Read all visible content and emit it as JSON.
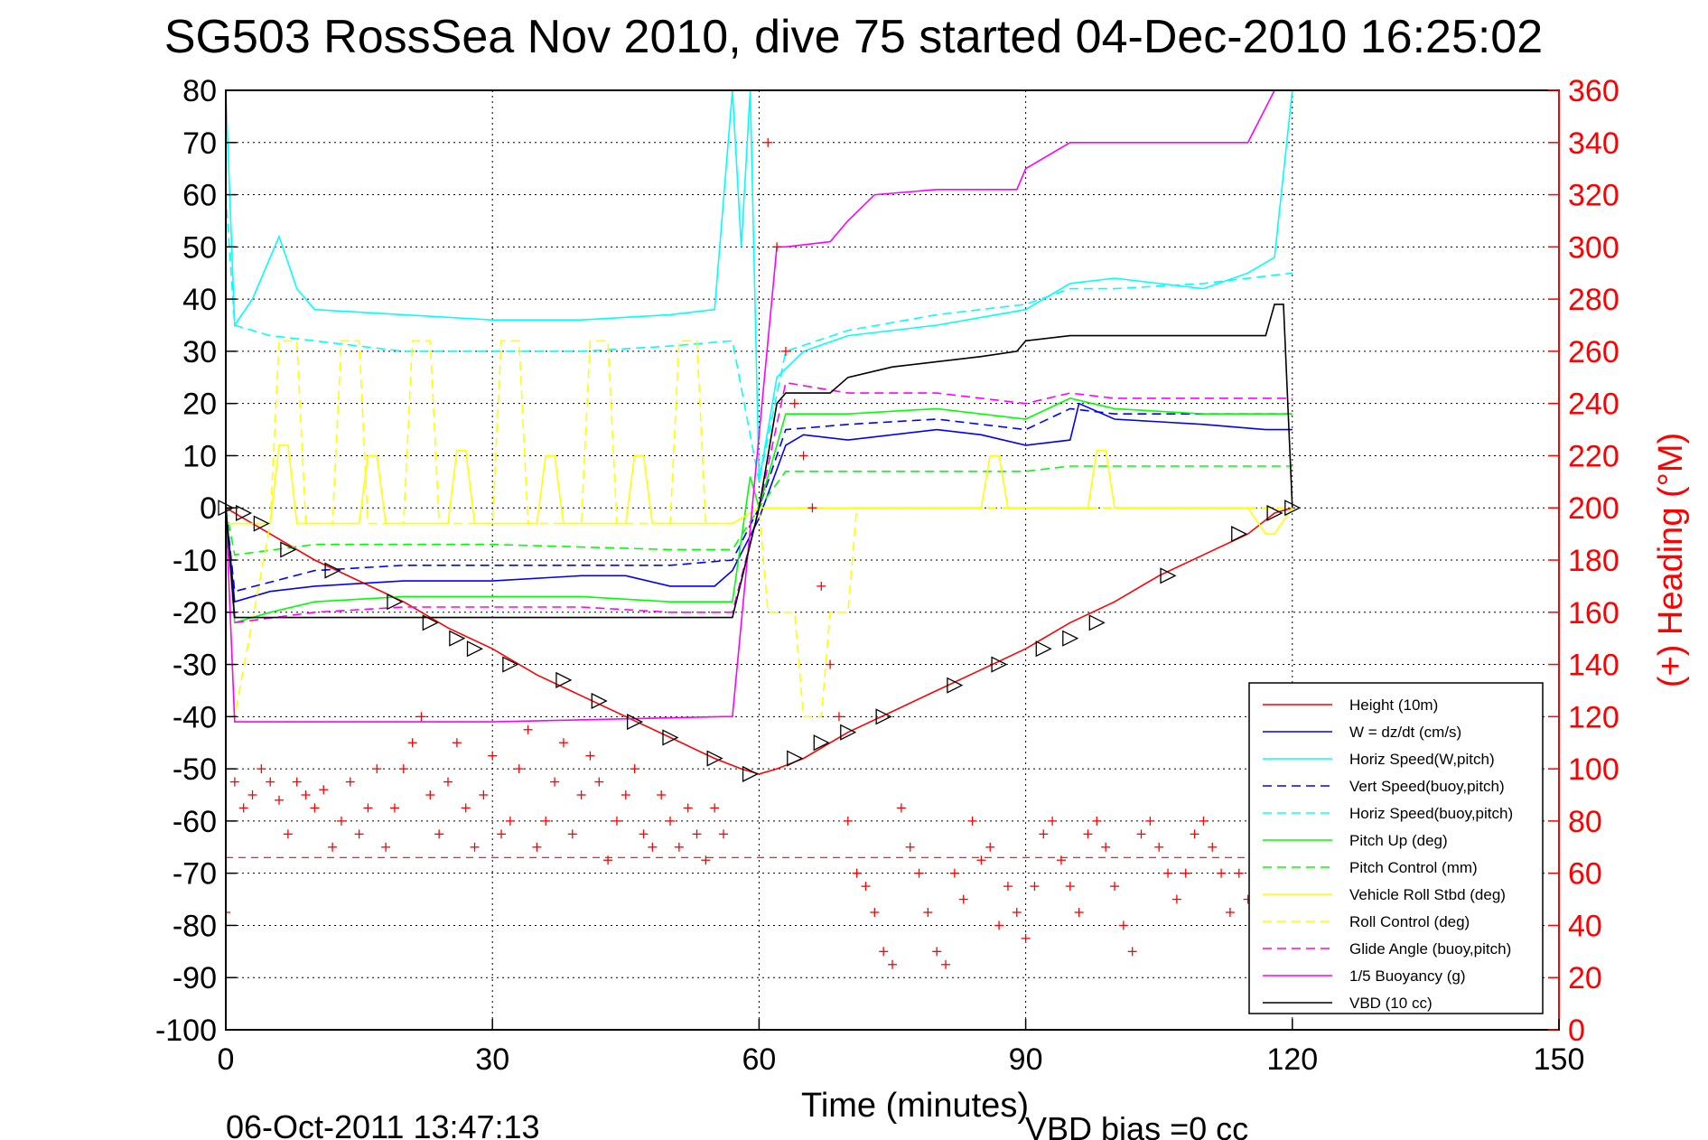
{
  "chart_data": {
    "type": "line",
    "title": "SG503 RossSea Nov 2010, dive 75 started 04-Dec-2010 16:25:02",
    "xlabel": "Time (minutes)",
    "ylabel_right": "(+) Heading (°M)",
    "footer_left": "06-Oct-2011 13:47:13",
    "footer_right": "VBD bias =0 cc",
    "xlim": [
      0,
      150
    ],
    "ylim": [
      -100,
      80
    ],
    "y2lim": [
      0,
      360
    ],
    "xticks": [
      "0",
      "30",
      "60",
      "90",
      "120",
      "150"
    ],
    "yticks": [
      "80",
      "70",
      "60",
      "50",
      "40",
      "30",
      "20",
      "10",
      "0",
      "-10",
      "-20",
      "-30",
      "-40",
      "-50",
      "-60",
      "-70",
      "-80",
      "-90",
      "-100"
    ],
    "y2ticks": [
      "360",
      "340",
      "320",
      "300",
      "280",
      "260",
      "240",
      "220",
      "200",
      "180",
      "160",
      "140",
      "120",
      "100",
      "80",
      "60",
      "40",
      "20",
      "0"
    ],
    "grid": true,
    "legend_position": "bottom-right",
    "colors": {
      "red": "#ff0000",
      "blue": "#0000ff",
      "cyan": "#00ffff",
      "green": "#00ff00",
      "yellow": "#ffff00",
      "magenta": "#ff00ff",
      "black": "#000000",
      "right_axis": "#ff0000"
    },
    "series": [
      {
        "name": "Height (10m)",
        "color": "#ff0000",
        "dash": "solid",
        "axis": "left",
        "x": [
          0,
          5,
          10,
          15,
          20,
          25,
          30,
          35,
          40,
          45,
          50,
          55,
          58,
          60,
          62,
          65,
          70,
          75,
          80,
          85,
          90,
          95,
          100,
          105,
          110,
          115,
          118,
          120
        ],
        "y": [
          0,
          -5,
          -10,
          -14,
          -18,
          -23,
          -27,
          -32,
          -36,
          -40,
          -44,
          -48,
          -50,
          -51,
          -50,
          -48,
          -43,
          -39,
          -35,
          -31,
          -27,
          -22,
          -18,
          -13,
          -9,
          -5,
          -1,
          0
        ]
      },
      {
        "name": "W = dz/dt (cm/s)",
        "color": "#0000ff",
        "dash": "solid",
        "axis": "left",
        "x": [
          0,
          1,
          5,
          10,
          20,
          30,
          40,
          45,
          50,
          55,
          57,
          60,
          63,
          65,
          70,
          80,
          85,
          90,
          95,
          96,
          100,
          110,
          117,
          120
        ],
        "y": [
          0,
          -18,
          -16,
          -15,
          -14,
          -14,
          -13,
          -13,
          -15,
          -15,
          -12,
          -2,
          12,
          14,
          13,
          15,
          14,
          12,
          13,
          20,
          17,
          16,
          15,
          15
        ]
      },
      {
        "name": "Horiz Speed(W,pitch)",
        "color": "#00ffff",
        "dash": "solid",
        "axis": "left",
        "x": [
          0,
          1,
          3,
          6,
          8,
          10,
          20,
          30,
          40,
          50,
          55,
          57,
          58,
          59,
          60,
          62,
          65,
          70,
          80,
          90,
          95,
          100,
          110,
          115,
          118,
          120
        ],
        "y": [
          80,
          35,
          40,
          52,
          42,
          38,
          37,
          36,
          36,
          37,
          38,
          80,
          50,
          80,
          5,
          25,
          30,
          33,
          35,
          38,
          43,
          44,
          42,
          45,
          48,
          80
        ]
      },
      {
        "name": "Vert Speed(buoy,pitch)",
        "color": "#0000ff",
        "dash": "dashed",
        "axis": "left",
        "x": [
          0,
          1,
          10,
          20,
          30,
          40,
          50,
          57,
          60,
          63,
          70,
          80,
          90,
          95,
          100,
          110,
          120
        ],
        "y": [
          0,
          -16,
          -12,
          -11,
          -11,
          -11,
          -11,
          -10,
          0,
          15,
          16,
          17,
          15,
          19,
          18,
          18,
          18
        ]
      },
      {
        "name": "Horiz Speed(buoy,pitch)",
        "color": "#00ffff",
        "dash": "dashed",
        "axis": "left",
        "x": [
          0,
          1,
          5,
          10,
          20,
          30,
          40,
          50,
          57,
          60,
          63,
          70,
          80,
          90,
          95,
          100,
          110,
          120
        ],
        "y": [
          60,
          35,
          33,
          32,
          30,
          30,
          30,
          31,
          32,
          5,
          30,
          34,
          37,
          39,
          42,
          42,
          43,
          45
        ]
      },
      {
        "name": "Pitch Up (deg)",
        "color": "#00ff00",
        "dash": "solid",
        "axis": "left",
        "x": [
          0,
          1,
          5,
          10,
          20,
          30,
          40,
          50,
          57,
          59,
          60,
          63,
          70,
          80,
          90,
          95,
          100,
          110,
          120
        ],
        "y": [
          0,
          -22,
          -20,
          -18,
          -17,
          -17,
          -17,
          -18,
          -18,
          6,
          0,
          18,
          18,
          19,
          17,
          21,
          19,
          18,
          18
        ]
      },
      {
        "name": "Pitch Control (mm)",
        "color": "#00ff00",
        "dash": "dashed",
        "axis": "left",
        "x": [
          0,
          1,
          10,
          30,
          50,
          57,
          60,
          63,
          70,
          90,
          95,
          120
        ],
        "y": [
          0,
          -9,
          -7,
          -7,
          -8,
          -8,
          0,
          7,
          7,
          7,
          8,
          8
        ]
      },
      {
        "name": "Vehicle Roll Stbd (deg)",
        "color": "#ffff00",
        "dash": "solid",
        "axis": "left",
        "x": [
          0,
          5,
          6,
          7,
          8,
          10,
          15,
          16,
          17,
          18,
          25,
          26,
          27,
          28,
          35,
          36,
          37,
          38,
          45,
          46,
          47,
          48,
          55,
          57,
          60,
          70,
          85,
          86,
          87,
          88,
          97,
          98,
          99,
          100,
          115,
          117,
          118,
          120
        ],
        "y": [
          -3,
          -3,
          12,
          12,
          -3,
          -3,
          -3,
          10,
          10,
          -3,
          -3,
          11,
          11,
          -3,
          -3,
          10,
          10,
          -3,
          -3,
          10,
          10,
          -3,
          -3,
          -3,
          0,
          0,
          0,
          10,
          10,
          0,
          0,
          11,
          11,
          0,
          0,
          -5,
          -5,
          0
        ]
      },
      {
        "name": "Roll Control (deg)",
        "color": "#ffff00",
        "dash": "dashed",
        "axis": "left",
        "x": [
          0,
          1,
          5,
          6,
          8,
          9,
          12,
          13,
          15,
          16,
          20,
          21,
          23,
          24,
          30,
          31,
          33,
          34,
          40,
          41,
          43,
          44,
          50,
          51,
          53,
          54,
          57,
          60,
          61,
          64,
          65,
          67,
          68,
          70,
          71,
          120
        ],
        "y": [
          0,
          -40,
          -3,
          32,
          32,
          -3,
          -3,
          32,
          32,
          -3,
          -3,
          32,
          32,
          -3,
          -3,
          32,
          32,
          -3,
          -3,
          32,
          32,
          -3,
          -3,
          32,
          32,
          -3,
          -3,
          0,
          -20,
          -20,
          -40,
          -40,
          -20,
          -20,
          0,
          0
        ]
      },
      {
        "name": "Glide Angle (buoy,pitch)",
        "color": "#ff00ff",
        "dash": "dashed",
        "axis": "left",
        "x": [
          0,
          1,
          10,
          20,
          30,
          40,
          50,
          57,
          60,
          63,
          70,
          80,
          90,
          95,
          100,
          110,
          120
        ],
        "y": [
          0,
          -22,
          -20,
          -19,
          -19,
          -19,
          -20,
          -20,
          0,
          24,
          22,
          22,
          20,
          22,
          21,
          21,
          21
        ]
      },
      {
        "name": "1/5 Buoyancy (g)",
        "color": "#ff00ff",
        "dash": "solid",
        "axis": "left",
        "x": [
          0,
          1,
          30,
          56,
          57,
          62,
          63,
          68,
          70,
          73,
          80,
          85,
          89,
          90,
          95,
          115,
          118,
          119
        ],
        "y": [
          0,
          -41,
          -41,
          -40,
          -40,
          50,
          50,
          51,
          55,
          60,
          61,
          61,
          61,
          65,
          70,
          70,
          80,
          80
        ]
      },
      {
        "name": "VBD (10 cc)",
        "color": "#000000",
        "dash": "solid",
        "axis": "left",
        "x": [
          0,
          1,
          55,
          57,
          60,
          62,
          63,
          68,
          70,
          75,
          80,
          85,
          89,
          90,
          95,
          117,
          118,
          119,
          120
        ],
        "y": [
          0,
          -21,
          -21,
          -21,
          0,
          20,
          22,
          22,
          25,
          27,
          28,
          29,
          30,
          32,
          33,
          33,
          39,
          39,
          0
        ]
      }
    ],
    "heading_series": {
      "name": "Heading",
      "color": "#ff0000",
      "axis": "right",
      "marker": "+",
      "reference_level": 66,
      "reference_line": "dashed",
      "x": [
        0,
        1,
        2,
        3,
        4,
        5,
        6,
        7,
        8,
        9,
        10,
        11,
        12,
        13,
        14,
        15,
        16,
        17,
        18,
        19,
        20,
        21,
        22,
        23,
        24,
        25,
        26,
        27,
        28,
        29,
        30,
        31,
        32,
        33,
        34,
        35,
        36,
        37,
        38,
        39,
        40,
        41,
        42,
        43,
        44,
        45,
        46,
        47,
        48,
        49,
        50,
        51,
        52,
        53,
        54,
        55,
        56,
        61,
        62,
        63,
        64,
        65,
        66,
        67,
        68,
        69,
        70,
        71,
        72,
        73,
        74,
        75,
        76,
        77,
        78,
        79,
        80,
        81,
        82,
        83,
        84,
        85,
        86,
        87,
        88,
        89,
        90,
        91,
        92,
        93,
        94,
        95,
        96,
        97,
        98,
        99,
        100,
        101,
        102,
        103,
        104,
        105,
        106,
        107,
        108,
        109,
        110,
        111,
        112,
        113,
        114,
        115,
        116,
        117
      ],
      "y": [
        45,
        95,
        85,
        90,
        100,
        95,
        88,
        75,
        95,
        90,
        85,
        92,
        70,
        80,
        95,
        75,
        85,
        100,
        70,
        85,
        100,
        110,
        120,
        90,
        75,
        95,
        110,
        85,
        70,
        90,
        105,
        75,
        80,
        100,
        115,
        70,
        80,
        95,
        110,
        75,
        90,
        105,
        95,
        65,
        80,
        90,
        100,
        75,
        70,
        90,
        80,
        70,
        85,
        75,
        65,
        85,
        75,
        340,
        300,
        260,
        240,
        220,
        200,
        170,
        140,
        120,
        80,
        60,
        55,
        45,
        30,
        25,
        85,
        70,
        60,
        45,
        30,
        25,
        60,
        50,
        80,
        65,
        70,
        40,
        55,
        45,
        35,
        55,
        75,
        80,
        65,
        55,
        45,
        75,
        80,
        70,
        55,
        40,
        30,
        75,
        80,
        70,
        60,
        50,
        60,
        75,
        80,
        70,
        60,
        45,
        60,
        50,
        80,
        85
      ]
    },
    "depth_markers": {
      "color": "#000000",
      "marker": "triangle",
      "x": [
        0,
        2,
        4,
        7,
        12,
        19,
        23,
        26,
        28,
        32,
        38,
        42,
        46,
        50,
        55,
        59,
        64,
        67,
        70,
        74,
        82,
        87,
        92,
        95,
        98,
        106,
        114,
        118,
        120
      ],
      "y": [
        0,
        -1,
        -3,
        -8,
        -12,
        -18,
        -22,
        -25,
        -27,
        -30,
        -33,
        -37,
        -41,
        -44,
        -48,
        -51,
        -48,
        -45,
        -43,
        -40,
        -34,
        -30,
        -27,
        -25,
        -22,
        -13,
        -5,
        -1,
        0
      ]
    }
  }
}
